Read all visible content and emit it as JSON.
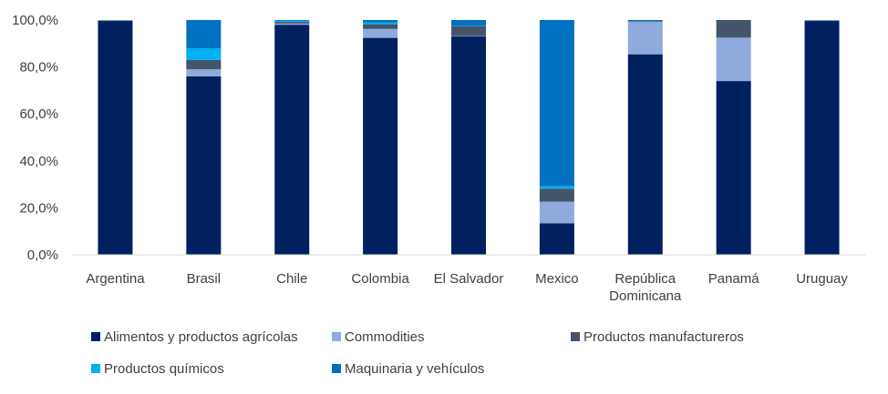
{
  "chart_data": {
    "type": "bar",
    "stacked": true,
    "categories": [
      "Argentina",
      "Brasil",
      "Chile",
      "Colombia",
      "El Salvador",
      "Mexico",
      "República Dominicana",
      "Panamá",
      "Uruguay"
    ],
    "category_labels": [
      [
        "Argentina"
      ],
      [
        "Brasil"
      ],
      [
        "Chile"
      ],
      [
        "Colombia"
      ],
      [
        "El Salvador"
      ],
      [
        "Mexico"
      ],
      [
        "República",
        "Dominicana"
      ],
      [
        "Panamá"
      ],
      [
        "Uruguay"
      ]
    ],
    "series": [
      {
        "name": "Alimentos y productos agrícolas",
        "color": "#002060",
        "values": [
          99.6,
          76.0,
          98.0,
          92.4,
          93.0,
          13.4,
          85.4,
          74.0,
          99.6
        ]
      },
      {
        "name": "Commodities",
        "color": "#8FAADC",
        "values": [
          0.1,
          3.0,
          0.5,
          3.8,
          0.2,
          9.2,
          13.8,
          18.5,
          0.1
        ]
      },
      {
        "name": "Productos manufactureros",
        "color": "#44546A",
        "values": [
          0.1,
          4.0,
          0.7,
          2.0,
          4.2,
          5.6,
          0.3,
          7.5,
          0.1
        ]
      },
      {
        "name": "Productos químicos",
        "color": "#00B0F0",
        "values": [
          0.1,
          5.0,
          0.5,
          0.8,
          0.1,
          1.0,
          0.1,
          0.0,
          0.1
        ]
      },
      {
        "name": "Maquinaria y vehículos",
        "color": "#0070C0",
        "values": [
          0.1,
          12.0,
          0.3,
          1.0,
          2.5,
          70.8,
          0.4,
          0.0,
          0.1
        ]
      }
    ],
    "y_ticks": [
      "0,0%",
      "20,0%",
      "40,0%",
      "60,0%",
      "80,0%",
      "100,0%"
    ],
    "ylim": [
      0,
      100
    ],
    "title": "",
    "xlabel": "",
    "ylabel": "",
    "grid": false,
    "legend_position": "bottom"
  }
}
